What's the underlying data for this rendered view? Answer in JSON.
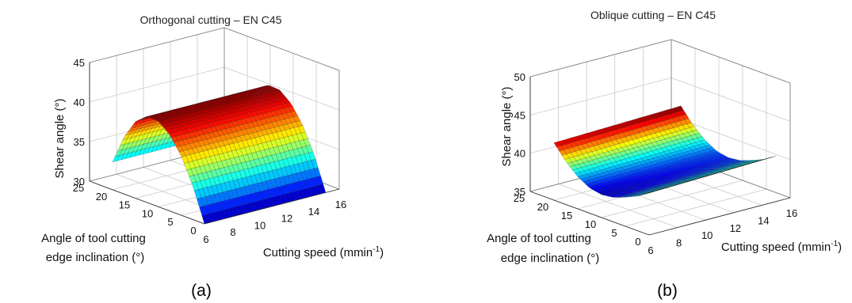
{
  "chart_data": [
    {
      "type": "surface",
      "panel": "a",
      "title": "Orthogonal cutting – EN C45",
      "zlabel": "Shear angle (°)",
      "ylabel_line1": "Angle of tool cutting",
      "ylabel_line2": "edge inclination (°)",
      "xlabel": "Cutting speed (mmin-1)",
      "x_ticks": [
        "6",
        "8",
        "10",
        "12",
        "14",
        "16"
      ],
      "y_ticks": [
        "0",
        "5",
        "10",
        "15",
        "20",
        "25"
      ],
      "z_ticks": [
        "30",
        "35",
        "40",
        "45"
      ],
      "xlim": [
        6,
        16
      ],
      "ylim": [
        0,
        25
      ],
      "zlim": [
        30,
        45
      ],
      "surface_x_range": [
        6,
        15
      ],
      "surface_y_range": [
        0,
        20
      ],
      "surface_profile": {
        "y": [
          0,
          2.5,
          5,
          7.5,
          10,
          12.5,
          15,
          17.5,
          20
        ],
        "z": [
          30,
          34.2,
          37.4,
          39.6,
          40.8,
          40.9,
          39.7,
          37.2,
          33.5
        ]
      },
      "surface_slope_per_x": 0,
      "caption": "(a)"
    },
    {
      "type": "surface",
      "panel": "b",
      "title": "Oblique cutting – EN C45",
      "zlabel": "Shear angle (°)",
      "ylabel_line1": "Angle of tool cutting",
      "ylabel_line2": "edge inclination (°)",
      "xlabel": "Cutting speed (mmin-1)",
      "x_ticks": [
        "6",
        "8",
        "10",
        "12",
        "14",
        "16"
      ],
      "y_ticks": [
        "0",
        "5",
        "10",
        "15",
        "20",
        "25"
      ],
      "z_ticks": [
        "35",
        "40",
        "45",
        "50"
      ],
      "xlim": [
        6,
        16
      ],
      "ylim": [
        0,
        25
      ],
      "zlim": [
        35,
        50
      ],
      "surface_x_range": [
        6,
        15
      ],
      "surface_y_range": [
        0,
        20
      ],
      "surface_profile": {
        "y": [
          0,
          2.5,
          5,
          7.5,
          10,
          12.5,
          15,
          17.5,
          20
        ],
        "z": [
          40.5,
          39.5,
          38.8,
          38.2,
          38.0,
          38.3,
          39.2,
          40.6,
          42.5
        ]
      },
      "surface_slope_per_x": 0.05,
      "caption": "(b)"
    }
  ]
}
